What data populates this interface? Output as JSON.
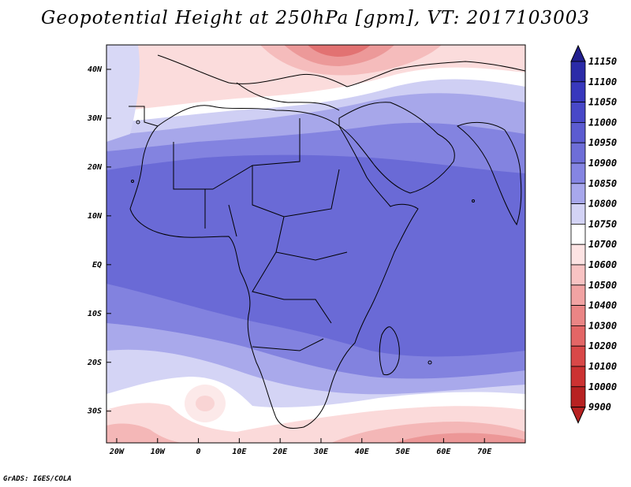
{
  "title": "Geopotential Height at 250hPa [gpm], VT: 2017103003",
  "credit": "GrADS: IGES/COLA",
  "map": {
    "lat_ticks": [
      "40N",
      "30N",
      "20N",
      "10N",
      "EQ",
      "10S",
      "20S",
      "30S"
    ],
    "lon_ticks": [
      "20W",
      "10W",
      "0",
      "10E",
      "20E",
      "30E",
      "40E",
      "50E",
      "60E",
      "70E"
    ],
    "lat_values": [
      40,
      30,
      20,
      10,
      0,
      -10,
      -20,
      -30
    ],
    "lon_values": [
      -20,
      -10,
      0,
      10,
      20,
      30,
      40,
      50,
      60,
      70
    ],
    "lat_range": [
      -36.5,
      45
    ],
    "lon_range": [
      -22.5,
      80
    ]
  },
  "colorbar": {
    "levels": [
      "11150",
      "11100",
      "11050",
      "11000",
      "10950",
      "10900",
      "10850",
      "10800",
      "10750",
      "10700",
      "10600",
      "10500",
      "10400",
      "10300",
      "10200",
      "10100",
      "10000",
      "9900"
    ],
    "colors": [
      "#23208f",
      "#2b2ba8",
      "#3838bd",
      "#4848c8",
      "#5c5cd1",
      "#6e6ed8",
      "#8585e2",
      "#a8a8ec",
      "#d3d3f5",
      "#ffffff",
      "#fde3e3",
      "#f8c3c3",
      "#f1a3a3",
      "#ea8585",
      "#e36666",
      "#d94848",
      "#cc3232",
      "#b82222"
    ]
  },
  "colors": {
    "deep_blue": "#6a6ad6",
    "mid_blue": "#8383e0",
    "light_blue": "#b9b9ef",
    "pale_blue": "#dcdcf7",
    "pale_red": "#f9d4d4",
    "mid_red": "#f0a7a7",
    "deep_red": "#e46c6c"
  }
}
